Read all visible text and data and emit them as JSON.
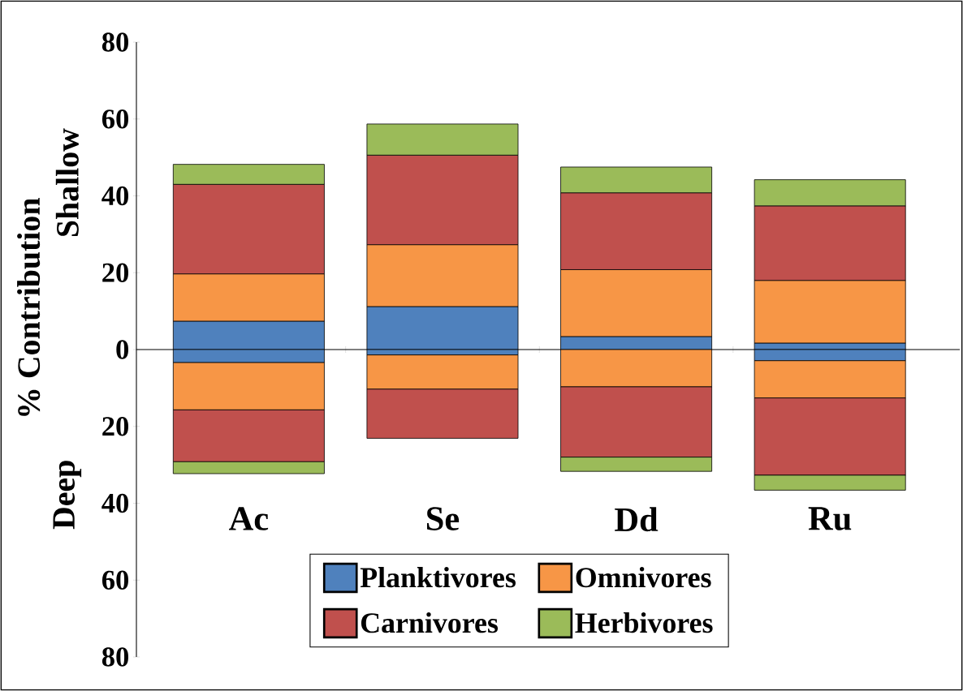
{
  "chart_data": {
    "type": "bar",
    "stacked": true,
    "ylabel": "% Contribution",
    "annotations": [
      "Shallow",
      "Deep"
    ],
    "categories": [
      "Ac",
      "Se",
      "Dd",
      "Ru"
    ],
    "series": [
      {
        "name": "Planktivores",
        "color": "#4f81bd",
        "values": [
          7.4,
          11.2,
          3.4,
          1.7
        ]
      },
      {
        "name": "Omnivores",
        "color": "#f79646",
        "values": [
          12.3,
          16.1,
          17.4,
          16.3
        ]
      },
      {
        "name": "Carnivores",
        "color": "#c0504d",
        "values": [
          23.3,
          23.3,
          20.0,
          19.4
        ]
      },
      {
        "name": "Herbivores",
        "color": "#9bbb59",
        "values": [
          5.2,
          8.1,
          6.7,
          6.8
        ]
      },
      {
        "color": "#4f81bd",
        "values": [
          -3.4,
          -1.4,
          null,
          -2.9
        ]
      },
      {
        "color": "#f79646",
        "values": [
          -12.3,
          -8.9,
          -9.7,
          -9.7
        ]
      },
      {
        "color": "#c0504d",
        "values": [
          -13.5,
          -12.8,
          -18.3,
          -20.1
        ]
      },
      {
        "color": "#9bbb59",
        "values": [
          -3.1,
          null,
          -3.7,
          -3.9
        ]
      }
    ],
    "ylim": [
      -80,
      80
    ],
    "yticks": [
      {
        "value": -80,
        "label": "80"
      },
      {
        "value": -60,
        "label": "60"
      },
      {
        "value": -40,
        "label": "40"
      },
      {
        "value": -20,
        "label": "20"
      },
      0,
      20,
      40,
      60,
      80
    ],
    "legend": "bottom"
  }
}
